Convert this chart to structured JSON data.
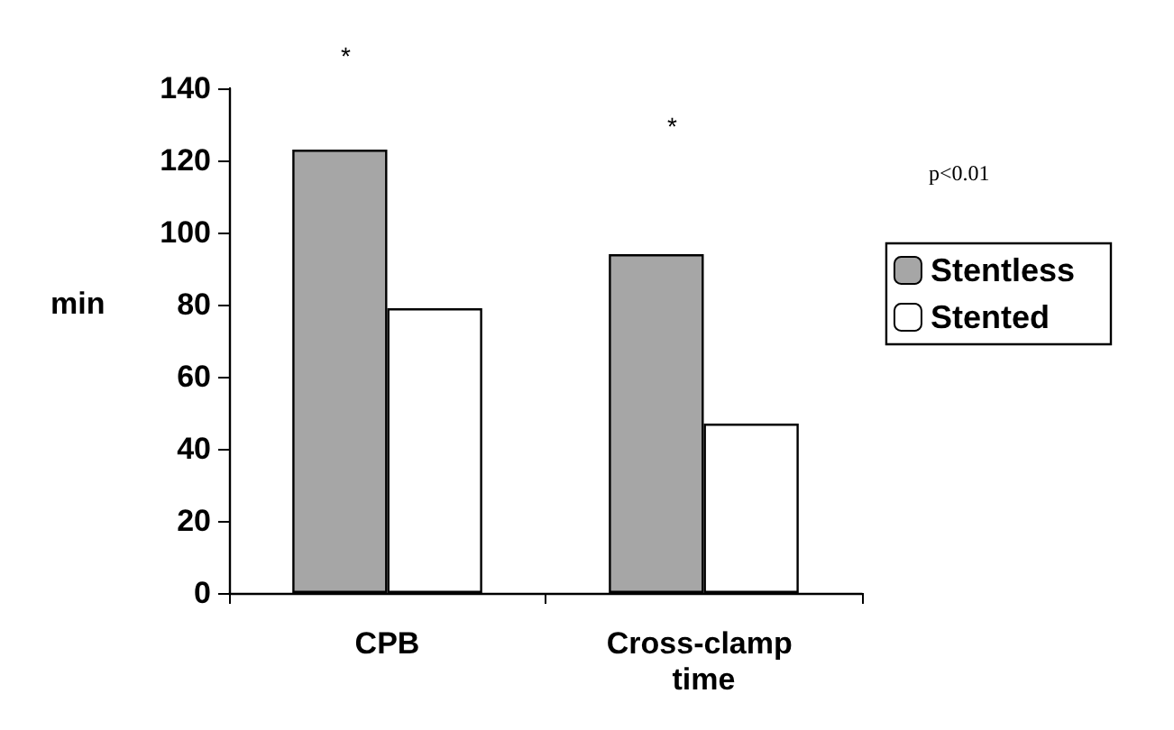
{
  "chart_data": {
    "type": "bar",
    "ylabel": "min",
    "categories": [
      "CPB",
      "Cross-clamp time"
    ],
    "series": [
      {
        "name": "Stentless",
        "color": "#a6a6a6",
        "values": [
          123,
          94
        ]
      },
      {
        "name": "Stented",
        "color": "#ffffff",
        "values": [
          79,
          47
        ]
      }
    ],
    "ylim": [
      0,
      140
    ],
    "yticks": [
      0,
      20,
      40,
      60,
      80,
      100,
      120,
      140
    ],
    "grid": false,
    "legend": "right",
    "annotations": [
      "*",
      "*",
      "p<0.01"
    ]
  }
}
